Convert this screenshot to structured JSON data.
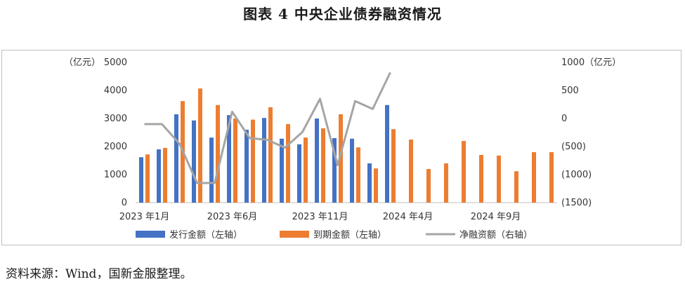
{
  "title": "图表 4  中央企业债券融资情况",
  "source": "资料来源：Wind，国新金服整理。",
  "chart_data": {
    "type": "bar",
    "title": "图表 4  中央企业债券融资情况",
    "left_unit": "（亿元）",
    "right_unit": "1000（亿元）",
    "left_axis": {
      "min": 0,
      "max": 5000,
      "ticks": [
        {
          "v": 0,
          "label": "0"
        },
        {
          "v": 1000,
          "label": "1000"
        },
        {
          "v": 2000,
          "label": "2000"
        },
        {
          "v": 3000,
          "label": "3000"
        },
        {
          "v": 4000,
          "label": "4000"
        },
        {
          "v": 5000,
          "label": "5000"
        }
      ]
    },
    "right_axis": {
      "min": -1500,
      "max": 1000,
      "ticks": [
        {
          "v": 1000,
          "label": ""
        },
        {
          "v": 500,
          "label": "500"
        },
        {
          "v": 0,
          "label": "0"
        },
        {
          "v": -500,
          "label": "(500)"
        },
        {
          "v": -1000,
          "label": "(1000)"
        },
        {
          "v": -1500,
          "label": "(1500)"
        }
      ]
    },
    "x_labels": [
      {
        "i": 0,
        "label": "2023 年1月"
      },
      {
        "i": 5,
        "label": "2023 年6月"
      },
      {
        "i": 10,
        "label": "2023 年11月"
      },
      {
        "i": 15,
        "label": "2024 年4月"
      },
      {
        "i": 20,
        "label": "2024 年9月"
      }
    ],
    "n_categories": 24,
    "series": [
      {
        "name": "发行金额（左轴）",
        "kind": "bar",
        "color": "#4472C4",
        "values": [
          1620,
          1900,
          3150,
          2930,
          2320,
          3120,
          2600,
          3020,
          2280,
          2080,
          3000,
          2300,
          2280,
          1400,
          3480,
          null,
          null,
          null,
          null,
          null,
          null,
          null,
          null,
          null
        ]
      },
      {
        "name": "到期金额（左轴）",
        "kind": "bar",
        "color": "#ED7D31",
        "values": [
          1720,
          1950,
          3620,
          4070,
          3480,
          3000,
          2960,
          3400,
          2800,
          2320,
          2650,
          3150,
          1970,
          1220,
          2620,
          2250,
          1200,
          1400,
          2200,
          1700,
          1680,
          1120,
          1800,
          1800
        ]
      },
      {
        "name": "净融资额（右轴）",
        "kind": "line",
        "color": "#A5A5A5",
        "values": [
          -100,
          -100,
          -450,
          -1150,
          -1150,
          120,
          -350,
          -380,
          -520,
          -240,
          350,
          -830,
          310,
          170,
          820,
          null,
          null,
          null,
          null,
          null,
          null,
          null,
          null,
          null
        ]
      }
    ]
  }
}
